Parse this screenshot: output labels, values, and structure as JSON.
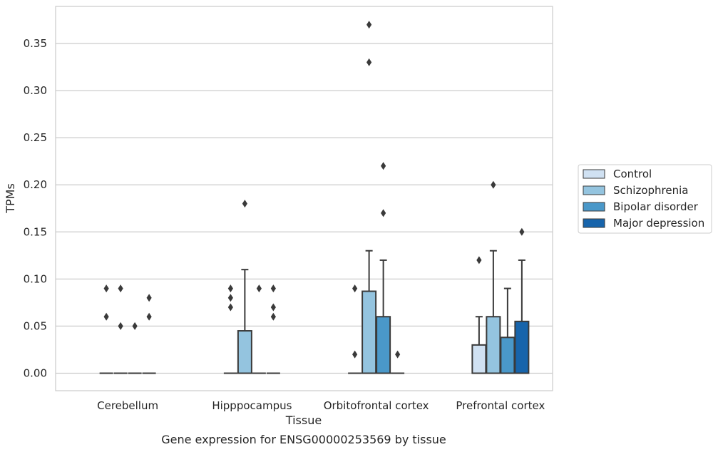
{
  "chart_data": {
    "type": "box",
    "title": "Gene expression for ENSG00000253569 by tissue",
    "xlabel": "Tissue",
    "ylabel": "TPMs",
    "ylim": [
      -0.018,
      0.388
    ],
    "yticks": [
      0.0,
      0.05,
      0.1,
      0.15,
      0.2,
      0.25,
      0.3,
      0.35
    ],
    "ytick_labels": [
      "0.00",
      "0.05",
      "0.10",
      "0.15",
      "0.20",
      "0.25",
      "0.30",
      "0.35"
    ],
    "grid": "horizontal",
    "legend_position": "right",
    "categories": [
      "Cerebellum",
      "Hipppocampus",
      "Orbitofrontal cortex",
      "Prefrontal cortex"
    ],
    "series": [
      {
        "name": "Control",
        "color": "#d0e1f2",
        "boxes": [
          {
            "q1": 0,
            "median": 0,
            "q3": 0,
            "whisker_low": 0,
            "whisker_high": 0,
            "outliers": [
              0.06,
              0.09
            ]
          },
          {
            "q1": 0,
            "median": 0,
            "q3": 0,
            "whisker_low": 0,
            "whisker_high": 0,
            "outliers": [
              0.07,
              0.08,
              0.09
            ]
          },
          {
            "q1": 0,
            "median": 0,
            "q3": 0,
            "whisker_low": 0,
            "whisker_high": 0,
            "outliers": [
              0.02,
              0.09
            ]
          },
          {
            "q1": 0,
            "median": 0,
            "q3": 0.03,
            "whisker_low": 0,
            "whisker_high": 0.06,
            "outliers": [
              0.12
            ]
          }
        ]
      },
      {
        "name": "Schizophrenia",
        "color": "#94c4df",
        "boxes": [
          {
            "q1": 0,
            "median": 0,
            "q3": 0,
            "whisker_low": 0,
            "whisker_high": 0,
            "outliers": [
              0.05,
              0.09
            ]
          },
          {
            "q1": 0,
            "median": 0,
            "q3": 0.045,
            "whisker_low": 0,
            "whisker_high": 0.11,
            "outliers": [
              0.18
            ]
          },
          {
            "q1": 0,
            "median": 0,
            "q3": 0.087,
            "whisker_low": 0,
            "whisker_high": 0.13,
            "outliers": [
              0.33,
              0.37
            ]
          },
          {
            "q1": 0,
            "median": 0,
            "q3": 0.06,
            "whisker_low": 0,
            "whisker_high": 0.13,
            "outliers": [
              0.2
            ]
          }
        ]
      },
      {
        "name": "Bipolar disorder",
        "color": "#4a98c9",
        "boxes": [
          {
            "q1": 0,
            "median": 0,
            "q3": 0,
            "whisker_low": 0,
            "whisker_high": 0,
            "outliers": [
              0.05
            ]
          },
          {
            "q1": 0,
            "median": 0,
            "q3": 0,
            "whisker_low": 0,
            "whisker_high": 0,
            "outliers": [
              0.09
            ]
          },
          {
            "q1": 0,
            "median": 0,
            "q3": 0.06,
            "whisker_low": 0,
            "whisker_high": 0.12,
            "outliers": [
              0.17,
              0.22
            ]
          },
          {
            "q1": 0,
            "median": 0,
            "q3": 0.038,
            "whisker_low": 0,
            "whisker_high": 0.09,
            "outliers": []
          }
        ]
      },
      {
        "name": "Major depression",
        "color": "#1764ab",
        "boxes": [
          {
            "q1": 0,
            "median": 0,
            "q3": 0,
            "whisker_low": 0,
            "whisker_high": 0,
            "outliers": [
              0.06,
              0.08
            ]
          },
          {
            "q1": 0,
            "median": 0,
            "q3": 0,
            "whisker_low": 0,
            "whisker_high": 0,
            "outliers": [
              0.06,
              0.07,
              0.09
            ]
          },
          {
            "q1": 0,
            "median": 0,
            "q3": 0,
            "whisker_low": 0,
            "whisker_high": 0,
            "outliers": [
              0.02
            ]
          },
          {
            "q1": 0,
            "median": 0,
            "q3": 0.055,
            "whisker_low": 0,
            "whisker_high": 0.12,
            "outliers": [
              0.15
            ]
          }
        ]
      }
    ]
  }
}
